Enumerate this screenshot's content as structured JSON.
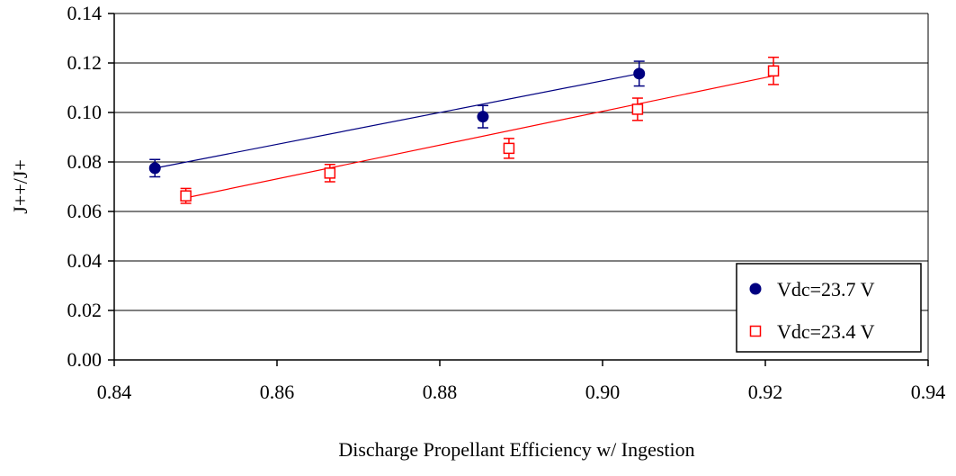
{
  "chart_data": {
    "type": "scatter",
    "title": "",
    "xlabel": "Discharge Propellant Efficiency w/ Ingestion",
    "ylabel": "J++/J+",
    "xlim": [
      0.84,
      0.94
    ],
    "ylim": [
      0.0,
      0.14
    ],
    "x_ticks": [
      "0.84",
      "0.86",
      "0.88",
      "0.90",
      "0.92",
      "0.94"
    ],
    "y_ticks": [
      "0.00",
      "0.02",
      "0.04",
      "0.06",
      "0.08",
      "0.10",
      "0.12",
      "0.14"
    ],
    "grid": "horizontal",
    "legend_position": "bottom-right",
    "series": [
      {
        "name": "Vdc=23.7 V",
        "marker": "filled-circle",
        "color": "#000080",
        "points": [
          {
            "x": 0.845,
            "y": 0.0775,
            "err": 0.0035
          },
          {
            "x": 0.8853,
            "y": 0.0983,
            "err": 0.0045
          },
          {
            "x": 0.9045,
            "y": 0.1157,
            "err": 0.005
          }
        ],
        "trendline": [
          [
            0.845,
            0.0775
          ],
          [
            0.9045,
            0.1157
          ]
        ]
      },
      {
        "name": "Vdc=23.4 V",
        "marker": "open-square",
        "color": "#ff0000",
        "points": [
          {
            "x": 0.8488,
            "y": 0.0663,
            "err": 0.003
          },
          {
            "x": 0.8665,
            "y": 0.0755,
            "err": 0.0035
          },
          {
            "x": 0.8885,
            "y": 0.0855,
            "err": 0.004
          },
          {
            "x": 0.9043,
            "y": 0.1013,
            "err": 0.0045
          },
          {
            "x": 0.921,
            "y": 0.1168,
            "err": 0.0055
          }
        ],
        "trendline": [
          [
            0.8488,
            0.0655
          ],
          [
            0.921,
            0.1148
          ]
        ]
      }
    ]
  }
}
